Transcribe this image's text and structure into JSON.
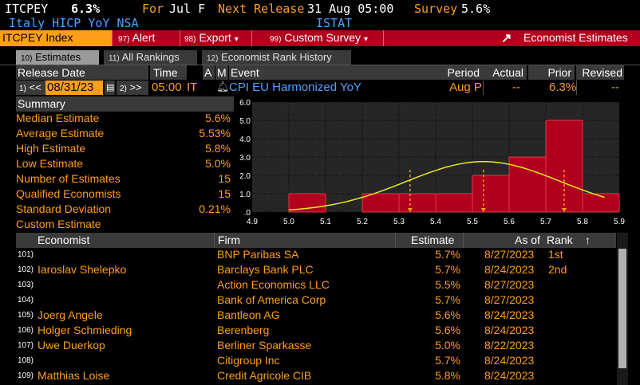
{
  "header": {
    "ticker": "ITCPEY",
    "value": "6.3%",
    "for_label": "For",
    "for_value": "Jul F",
    "next_release_label": "Next Release",
    "next_release_value": "31 Aug 05:00",
    "survey_label": "Survey",
    "survey_value": "5.6%",
    "description": "Italy HICP YoY NSA",
    "source": "ISTAT"
  },
  "toolbar": {
    "index_label": "ITCPEY Index",
    "alert_num": "97)",
    "alert_label": "Alert",
    "export_num": "98)",
    "export_label": "Export",
    "export_arrow": "▾",
    "custom_num": "99)",
    "custom_label": "Custom Survey",
    "custom_arrow": "▾",
    "economist_icon": "↗",
    "economist_label": "Economist Estimates"
  },
  "tabs": [
    {
      "num": "10)",
      "label": "Estimates"
    },
    {
      "num": "11)",
      "label": "All Rankings"
    },
    {
      "num": "12)",
      "label": "Economist Rank History"
    }
  ],
  "release_header": {
    "release_date": "Release Date",
    "time": "Time",
    "a": "A",
    "m": "M",
    "event": "Event",
    "period": "Period",
    "actual": "Actual",
    "prior": "Prior",
    "revised": "Revised"
  },
  "release_row": {
    "prev_num": "1)",
    "prev_arrows": "<<",
    "date": "08/31/23",
    "next_num": "2)",
    "next_arrows": ">>",
    "time": "05:00",
    "country": "IT",
    "event": "CPI EU Harmonized YoY",
    "period": "Aug P",
    "actual": "--",
    "prior": "6.3%",
    "revised": "--"
  },
  "summary": {
    "title": "Summary",
    "rows": [
      {
        "label": "Median Estimate",
        "value": "5.6%"
      },
      {
        "label": "Average Estimate",
        "value": "5.53%"
      },
      {
        "label": "High Estimate",
        "value": "5.8%"
      },
      {
        "label": "Low Estimate",
        "value": "5.0%"
      },
      {
        "label": "Number of Estimates",
        "value": "15"
      },
      {
        "label": "Qualified Economists",
        "value": "15"
      },
      {
        "label": "Standard Deviation",
        "value": "0.21%"
      },
      {
        "label": "Custom Estimate",
        "value": ""
      }
    ]
  },
  "chart_data": {
    "type": "bar",
    "bins": [
      {
        "from": 5.0,
        "to": 5.1,
        "count": 1
      },
      {
        "from": 5.1,
        "to": 5.2,
        "count": 0
      },
      {
        "from": 5.2,
        "to": 5.3,
        "count": 1
      },
      {
        "from": 5.3,
        "to": 5.4,
        "count": 1
      },
      {
        "from": 5.4,
        "to": 5.5,
        "count": 1
      },
      {
        "from": 5.5,
        "to": 5.6,
        "count": 2
      },
      {
        "from": 5.6,
        "to": 5.7,
        "count": 3
      },
      {
        "from": 5.7,
        "to": 5.8,
        "count": 5
      },
      {
        "from": 5.8,
        "to": 5.9,
        "count": 1
      }
    ],
    "xticks": [
      "4.9",
      "5.0",
      "5.1",
      "5.2",
      "5.3",
      "5.4",
      "5.5",
      "5.6",
      "5.7",
      "5.8",
      "5.9"
    ],
    "yticks": [
      ".0",
      "1.0",
      "2.0",
      "3.0",
      "4.0",
      "5.0",
      "6.0"
    ],
    "xlim": [
      4.9,
      5.9
    ],
    "ylim": [
      0,
      6
    ],
    "normal_curve": {
      "mean": 5.53,
      "sd": 0.21
    },
    "markers": [
      5.33,
      5.53,
      5.75
    ],
    "bar_color": "#b0001e",
    "curve_color": "#e8e82a",
    "marker_color": "#ff9e1b"
  },
  "table": {
    "headers": {
      "economist": "Economist",
      "firm": "Firm",
      "estimate": "Estimate",
      "as_of": "As of",
      "rank": "Rank",
      "sort_arrow": "↑"
    },
    "rows": [
      {
        "num": "101)",
        "economist": "",
        "firm": "BNP Paribas SA",
        "estimate": "5.7%",
        "as_of": "8/27/2023",
        "rank": "1st"
      },
      {
        "num": "102)",
        "economist": "Iaroslav Shelepko",
        "firm": "Barclays Bank PLC",
        "estimate": "5.7%",
        "as_of": "8/24/2023",
        "rank": "2nd"
      },
      {
        "num": "103)",
        "economist": "",
        "firm": "Action Economics LLC",
        "estimate": "5.5%",
        "as_of": "8/27/2023",
        "rank": ""
      },
      {
        "num": "104)",
        "economist": "",
        "firm": "Bank of America Corp",
        "estimate": "5.7%",
        "as_of": "8/27/2023",
        "rank": ""
      },
      {
        "num": "105)",
        "economist": "Joerg Angele",
        "firm": "Bantleon AG",
        "estimate": "5.6%",
        "as_of": "8/24/2023",
        "rank": ""
      },
      {
        "num": "106)",
        "economist": "Holger Schmieding",
        "firm": "Berenberg",
        "estimate": "5.6%",
        "as_of": "8/24/2023",
        "rank": ""
      },
      {
        "num": "107)",
        "economist": "Uwe Duerkop",
        "firm": "Berliner Sparkasse",
        "estimate": "5.0%",
        "as_of": "8/22/2023",
        "rank": ""
      },
      {
        "num": "108)",
        "economist": "",
        "firm": "Citigroup Inc",
        "estimate": "5.7%",
        "as_of": "8/24/2023",
        "rank": ""
      },
      {
        "num": "109)",
        "economist": "Matthias Loise",
        "firm": "Credit Agricole CIB",
        "estimate": "5.8%",
        "as_of": "8/24/2023",
        "rank": ""
      }
    ]
  }
}
